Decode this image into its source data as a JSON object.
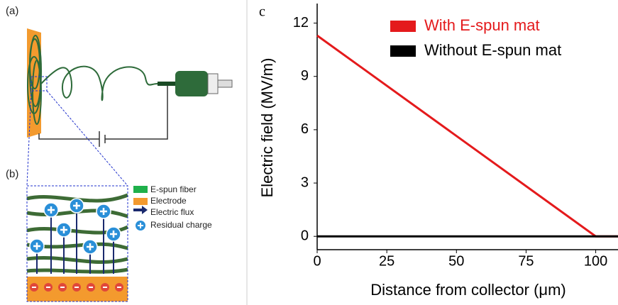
{
  "schematic": {
    "panel_a": "(a)",
    "panel_b": "(b)",
    "legend": [
      "E-spun fiber",
      "Electrode",
      "Electric flux",
      "Residual charge"
    ]
  },
  "chart_data": {
    "type": "line",
    "panel_label": "c",
    "xlabel": "Distance from collector (μm)",
    "ylabel": "Electric field (MV/m)",
    "x": [
      0,
      100,
      108
    ],
    "series": [
      {
        "name": "With E-spun mat",
        "color": "#e41a1c",
        "values": [
          11.3,
          0,
          0
        ]
      },
      {
        "name": "Without E-spun mat",
        "color": "#000000",
        "values": [
          0,
          0,
          0
        ]
      }
    ],
    "xlim": [
      0,
      108
    ],
    "ylim": [
      -0.75,
      13.1
    ],
    "xticks": [
      0,
      25,
      50,
      75,
      100
    ],
    "yticks": [
      0,
      3,
      6,
      9,
      12
    ],
    "legend": "upper right"
  }
}
